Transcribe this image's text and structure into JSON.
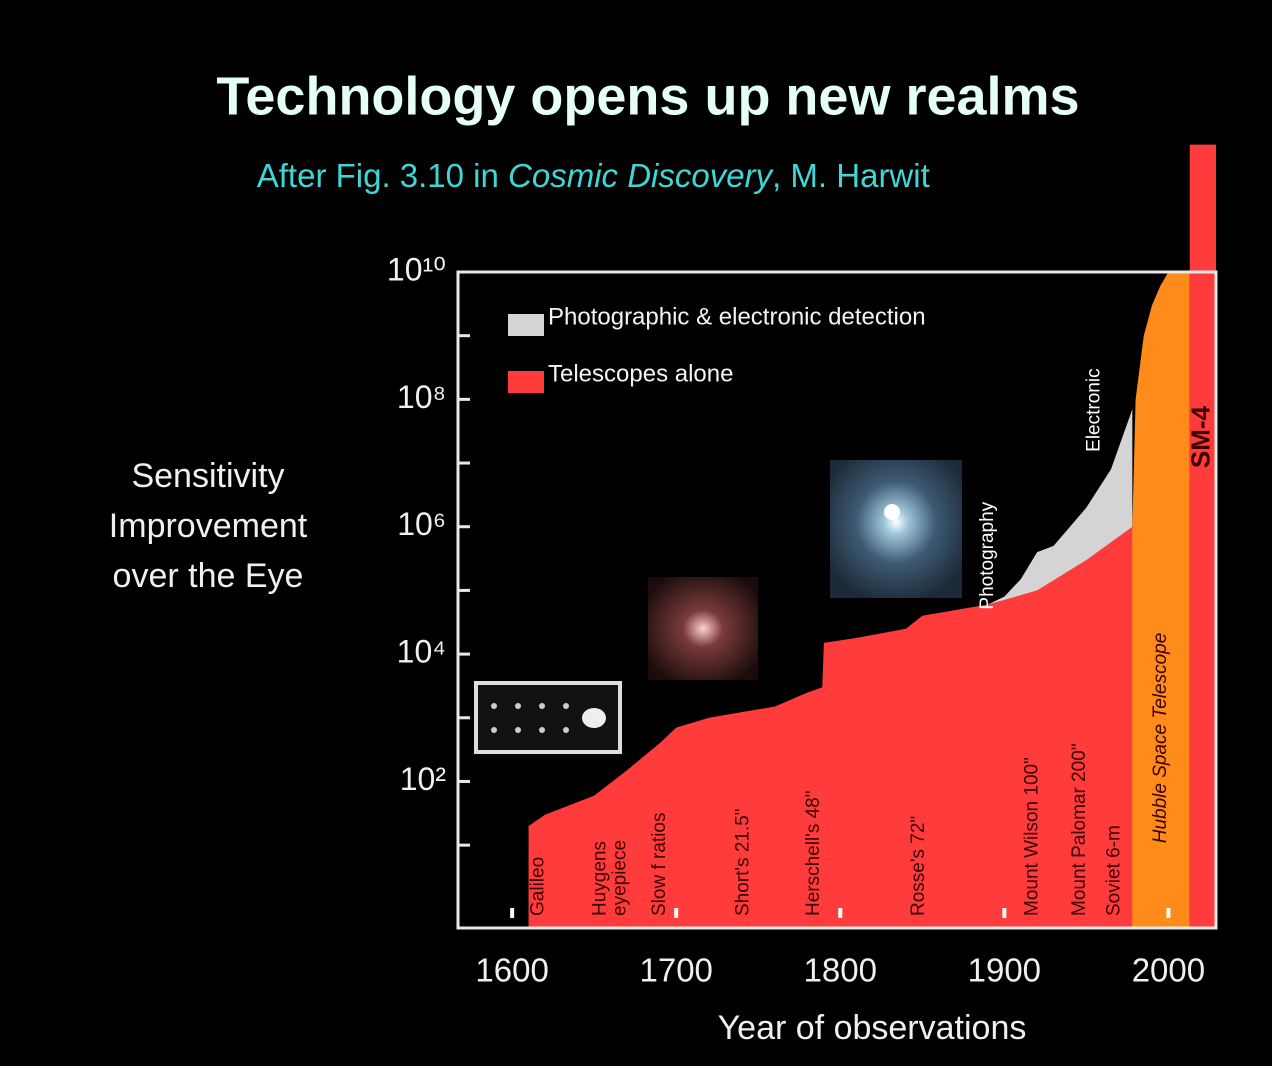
{
  "chart_data": {
    "type": "area",
    "title": "Technology opens up new realms",
    "subtitle_parts": [
      "After Fig. 3.10 in ",
      "Cosmic Discovery",
      ", M. Harwit"
    ],
    "ylabel_lines": [
      "Sensitivity",
      "Improvement",
      "over the Eye"
    ],
    "xlabel": "Year of observations",
    "ylog": true,
    "grid": false,
    "legend": "top-left",
    "xlim": [
      1567,
      2029
    ],
    "xticks": [
      1600,
      1700,
      1800,
      1900,
      2000
    ],
    "ylim": [
      0.5,
      10000000000
    ],
    "yticks": [
      {
        "value": 10000000000,
        "label": "10¹⁰"
      },
      {
        "value": 100000000,
        "label": "10⁸"
      },
      {
        "value": 1000000,
        "label": "10⁶"
      },
      {
        "value": 10000,
        "label": "10⁴"
      },
      {
        "value": 100,
        "label": "10²"
      }
    ],
    "minor_yticks": [
      1000000000,
      10000000,
      100000,
      1000,
      10
    ],
    "series": [
      {
        "name": "Photographic & electronic detection",
        "color": "#d4d4d4",
        "x": [
          1890,
          1900,
          1910,
          1920,
          1930,
          1950,
          1965,
          1978
        ],
        "values": [
          60000,
          80000,
          150000,
          400000,
          500000,
          2000000,
          8000000,
          70000000
        ]
      },
      {
        "name": "Telescopes alone",
        "color": "#ff3b3b",
        "x": [
          1610,
          1620,
          1650,
          1670,
          1690,
          1700,
          1720,
          1760,
          1780,
          1789,
          1790,
          1810,
          1840,
          1850,
          1890,
          1920,
          1950,
          1978
        ],
        "values": [
          20,
          30,
          60,
          150,
          400,
          700,
          1000,
          1500,
          2500,
          3000,
          15000,
          18000,
          25000,
          40000,
          60000,
          100000,
          300000,
          1000000
        ]
      }
    ],
    "bands": [
      {
        "label": "Hubble Space Telescope",
        "color": "#ff8c1a",
        "x": [
          1978,
          1980,
          1985,
          1990,
          1995,
          2000,
          2013
        ],
        "values": [
          1000000,
          100000000,
          1000000000,
          3000000000,
          6000000000,
          10000000000,
          10000000000
        ]
      },
      {
        "label": "SM-4",
        "color": "#ff3b3b",
        "x": [
          2013,
          2029
        ],
        "values": [
          1000000000000,
          1000000000000
        ]
      }
    ],
    "annotations": [
      {
        "lines": [
          "Galileo"
        ],
        "x": 1616
      },
      {
        "lines": [
          "Huygens",
          "eyepiece"
        ],
        "x": 1660
      },
      {
        "lines": [
          "Slow f ratios"
        ],
        "x": 1690
      },
      {
        "lines": [
          "Short's 21.5\""
        ],
        "x": 1741
      },
      {
        "lines": [
          "Herschell's 48\""
        ],
        "x": 1784
      },
      {
        "lines": [
          "Rosse's 72\""
        ],
        "x": 1848
      },
      {
        "lines": [
          "Photography"
        ],
        "x": 1890,
        "y": 50000,
        "color": "#ffffff"
      },
      {
        "lines": [
          "Mount Wilson 100\""
        ],
        "x": 1917
      },
      {
        "lines": [
          "Mount Palomar 200\""
        ],
        "x": 1946
      },
      {
        "lines": [
          "Soviet 6-m"
        ],
        "x": 1967
      },
      {
        "lines": [
          "Electronic"
        ],
        "x": 1955,
        "y": 15000000,
        "color": "#ffffff"
      }
    ]
  }
}
